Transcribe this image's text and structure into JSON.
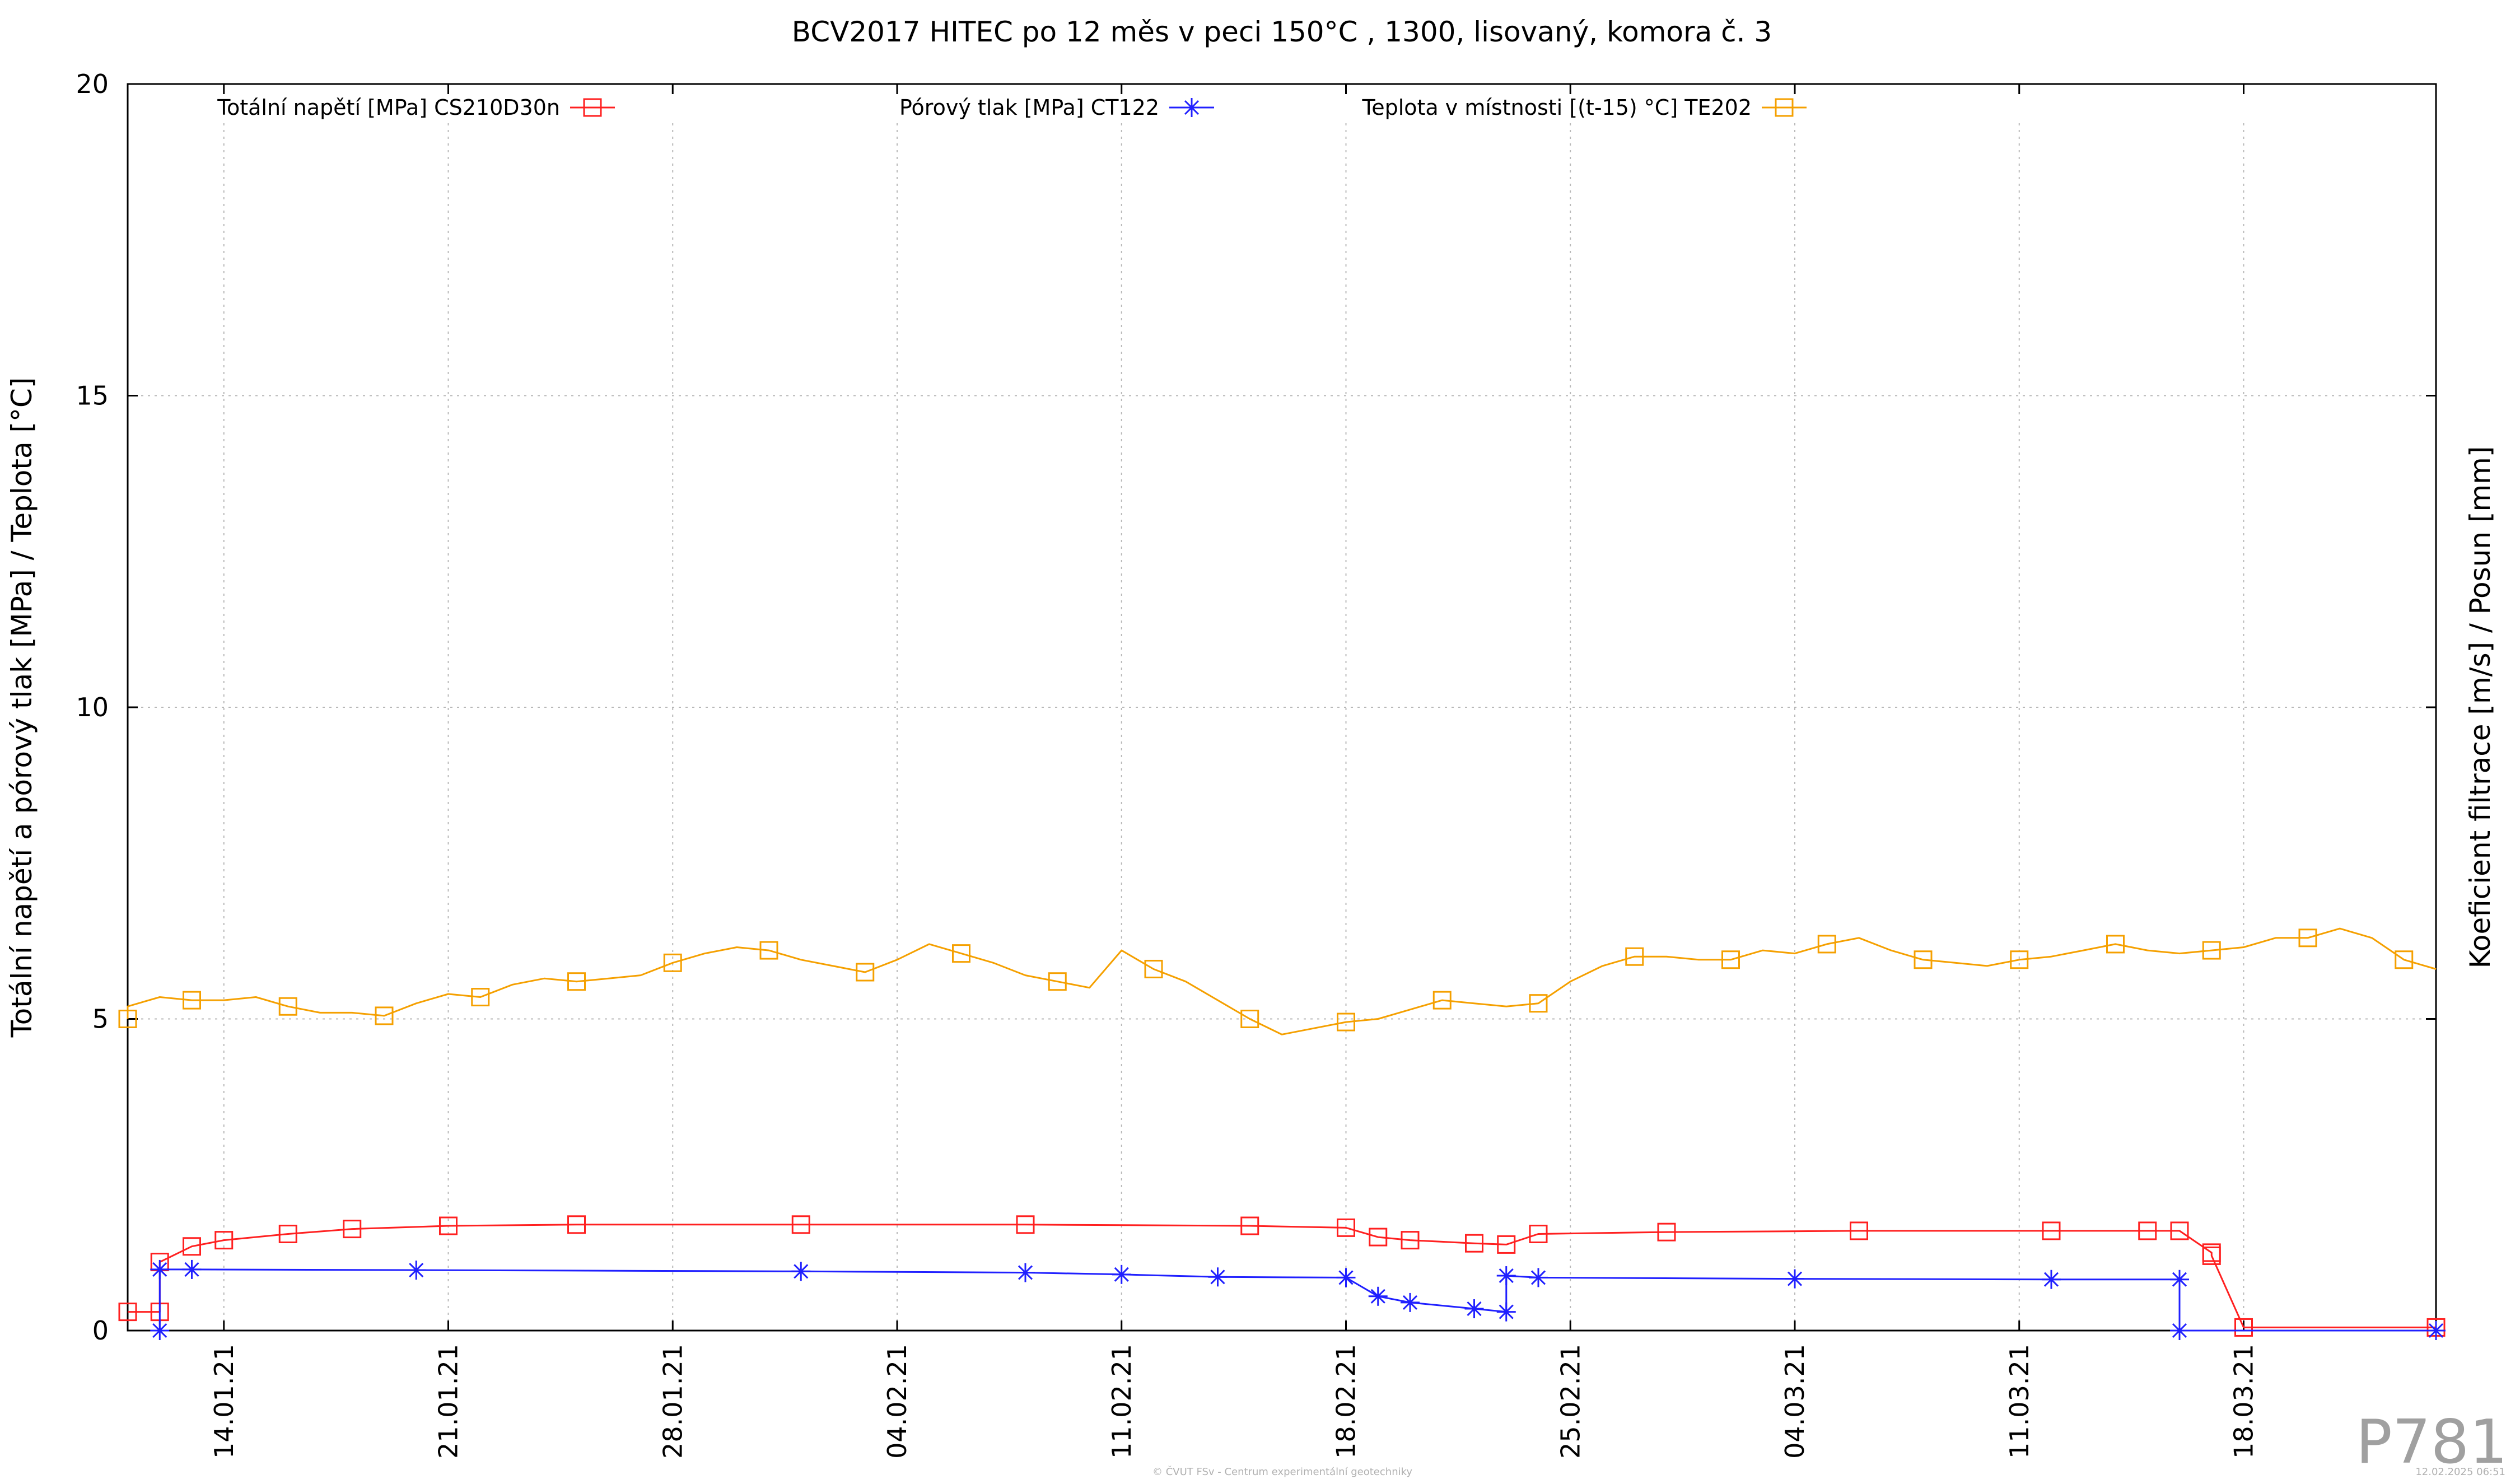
{
  "chart_data": {
    "type": "line",
    "title": "BCV2017 HITEC po 12 měs v peci 150°C , 1300, lisovaný, komora č. 3",
    "ylabel": "Totální napětí a pórový tlak [MPa] / Teplota [°C]",
    "y2label": "Koeficient filtrace [m/s] / Posun [mm]",
    "ylim": [
      0,
      20
    ],
    "yticks": [
      "0",
      "5",
      "10",
      "15",
      "20"
    ],
    "xlim": [
      "2021-01-11",
      "2021-03-24"
    ],
    "xticks": [
      {
        "date": "2021-01-14",
        "label": "14.01.21"
      },
      {
        "date": "2021-01-21",
        "label": "21.01.21"
      },
      {
        "date": "2021-01-28",
        "label": "28.01.21"
      },
      {
        "date": "2021-02-04",
        "label": "04.02.21"
      },
      {
        "date": "2021-02-11",
        "label": "11.02.21"
      },
      {
        "date": "2021-02-18",
        "label": "18.02.21"
      },
      {
        "date": "2021-02-25",
        "label": "25.02.21"
      },
      {
        "date": "2021-03-04",
        "label": "04.03.21"
      },
      {
        "date": "2021-03-11",
        "label": "11.03.21"
      },
      {
        "date": "2021-03-18",
        "label": "18.03.21"
      }
    ],
    "grid": true,
    "legend_position": "top",
    "series": [
      {
        "name": "Totální napětí [MPa] CS210D30n",
        "color": "#ff2020",
        "marker": "square",
        "x": [
          "2021-01-11",
          "2021-01-12",
          "2021-01-12",
          "2021-01-13",
          "2021-01-14",
          "2021-01-16",
          "2021-01-18",
          "2021-01-21",
          "2021-01-25",
          "2021-02-01",
          "2021-02-08",
          "2021-02-15",
          "2021-02-18",
          "2021-02-19",
          "2021-02-20",
          "2021-02-22",
          "2021-02-23",
          "2021-02-24",
          "2021-02-28",
          "2021-03-06",
          "2021-03-12",
          "2021-03-15",
          "2021-03-16",
          "2021-03-17",
          "2021-03-17",
          "2021-03-18",
          "2021-03-24"
        ],
        "y": [
          0.3,
          0.3,
          1.1,
          1.35,
          1.45,
          1.55,
          1.63,
          1.68,
          1.7,
          1.7,
          1.7,
          1.68,
          1.65,
          1.5,
          1.45,
          1.4,
          1.38,
          1.55,
          1.58,
          1.6,
          1.6,
          1.6,
          1.6,
          1.25,
          1.2,
          0.05,
          0.05
        ]
      },
      {
        "name": "Pórový tlak [MPa] CT122",
        "color": "#2020ff",
        "marker": "star",
        "x": [
          "2021-01-12",
          "2021-01-12",
          "2021-01-13",
          "2021-01-20",
          "2021-02-01",
          "2021-02-08",
          "2021-02-11",
          "2021-02-14",
          "2021-02-18",
          "2021-02-19",
          "2021-02-20",
          "2021-02-22",
          "2021-02-23",
          "2021-02-23",
          "2021-02-24",
          "2021-03-04",
          "2021-03-12",
          "2021-03-16",
          "2021-03-16",
          "2021-03-24"
        ],
        "y": [
          0,
          0.98,
          0.98,
          0.97,
          0.95,
          0.93,
          0.9,
          0.86,
          0.85,
          0.55,
          0.45,
          0.35,
          0.3,
          0.88,
          0.85,
          0.83,
          0.82,
          0.82,
          0,
          0
        ]
      },
      {
        "name": "Teplota v místnosti [(t-15) °C] TE202",
        "color": "#f5a000",
        "marker": "square",
        "x": [
          "2021-01-11",
          "2021-01-11",
          "2021-01-12",
          "2021-01-13",
          "2021-01-14",
          "2021-01-15",
          "2021-01-16",
          "2021-01-17",
          "2021-01-18",
          "2021-01-19",
          "2021-01-20",
          "2021-01-21",
          "2021-01-22",
          "2021-01-23",
          "2021-01-24",
          "2021-01-25",
          "2021-01-26",
          "2021-01-27",
          "2021-01-28",
          "2021-01-29",
          "2021-01-30",
          "2021-01-31",
          "2021-02-01",
          "2021-02-02",
          "2021-02-03",
          "2021-02-04",
          "2021-02-05",
          "2021-02-06",
          "2021-02-07",
          "2021-02-08",
          "2021-02-09",
          "2021-02-10",
          "2021-02-11",
          "2021-02-12",
          "2021-02-13",
          "2021-02-14",
          "2021-02-15",
          "2021-02-16",
          "2021-02-17",
          "2021-02-18",
          "2021-02-19",
          "2021-02-20",
          "2021-02-21",
          "2021-02-22",
          "2021-02-23",
          "2021-02-24",
          "2021-02-25",
          "2021-02-26",
          "2021-02-27",
          "2021-02-28",
          "2021-03-01",
          "2021-03-02",
          "2021-03-03",
          "2021-03-04",
          "2021-03-05",
          "2021-03-06",
          "2021-03-07",
          "2021-03-08",
          "2021-03-09",
          "2021-03-10",
          "2021-03-11",
          "2021-03-12",
          "2021-03-13",
          "2021-03-14",
          "2021-03-15",
          "2021-03-16",
          "2021-03-17",
          "2021-03-18",
          "2021-03-19",
          "2021-03-20",
          "2021-03-21",
          "2021-03-22",
          "2021-03-23",
          "2021-03-24"
        ],
        "y": [
          5.0,
          5.2,
          5.35,
          5.3,
          5.3,
          5.35,
          5.2,
          5.1,
          5.1,
          5.05,
          5.25,
          5.4,
          5.35,
          5.55,
          5.65,
          5.6,
          5.65,
          5.7,
          5.9,
          6.05,
          6.15,
          6.1,
          5.95,
          5.85,
          5.75,
          5.95,
          6.2,
          6.05,
          5.9,
          5.7,
          5.6,
          5.5,
          6.1,
          5.8,
          5.6,
          5.3,
          5.0,
          4.75,
          4.85,
          4.95,
          5.0,
          5.15,
          5.3,
          5.25,
          5.2,
          5.25,
          5.6,
          5.85,
          6.0,
          6.0,
          5.95,
          5.95,
          6.1,
          6.05,
          6.2,
          6.3,
          6.1,
          5.95,
          5.9,
          5.85,
          5.95,
          6.0,
          6.1,
          6.2,
          6.1,
          6.05,
          6.1,
          6.15,
          6.3,
          6.3,
          6.45,
          6.3,
          5.95,
          5.8
        ]
      }
    ]
  },
  "stamp": "P781",
  "footer_center": "© ČVUT FSv - Centrum experimentální geotechniky",
  "footer_right": "12.02.2025 06:51"
}
